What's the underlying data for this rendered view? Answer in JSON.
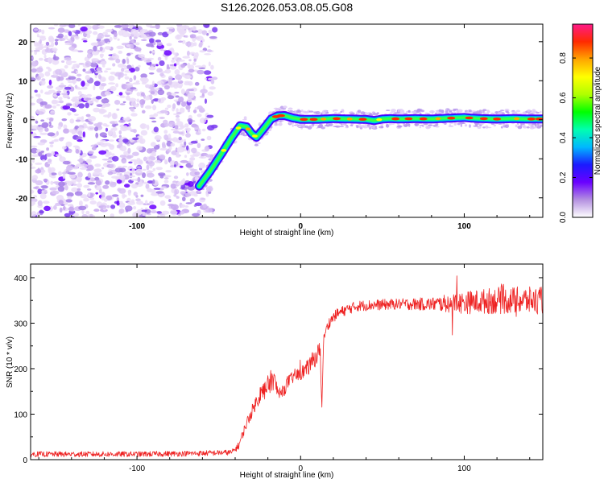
{
  "chart_data": [
    {
      "type": "heatmap",
      "title": "S126.2026.053.08.05.G08",
      "xlabel": "Height of straight line (km)",
      "ylabel": "Frequency (Hz)",
      "xlim": [
        -165,
        148
      ],
      "ylim": [
        -25,
        24.5
      ],
      "x_ticks": [
        -100,
        0,
        100
      ],
      "x_tick_labels": [
        "-100",
        "0",
        "100"
      ],
      "y_ticks": [
        -20,
        -10,
        0,
        10,
        20
      ],
      "y_tick_labels": [
        "-20",
        "-10",
        "0",
        "10",
        "20"
      ],
      "noise_region_x": [
        -165,
        -52
      ],
      "ridge": {
        "x": [
          -62,
          -55,
          -48,
          -42,
          -37,
          -33,
          -30,
          -27,
          -23,
          -18,
          -14,
          -10,
          -5,
          0,
          10,
          20,
          30,
          40,
          45,
          50,
          55,
          60,
          70,
          80,
          90,
          100,
          105,
          110,
          120,
          130,
          140,
          148
        ],
        "y": [
          -17,
          -13,
          -8.5,
          -4.5,
          -1.5,
          -1.8,
          -3.5,
          -4.5,
          -2.5,
          0.2,
          1,
          1.1,
          0.5,
          0.1,
          0.1,
          0.3,
          0.2,
          0.1,
          -0.2,
          0.2,
          0.3,
          0.2,
          0.3,
          0.2,
          0.4,
          0.6,
          0.4,
          0.3,
          0.2,
          0.3,
          0.2,
          0.2
        ]
      },
      "colorbar": {
        "label": "Normalized spectral amplitude",
        "range": [
          0,
          0.97
        ],
        "ticks": [
          0.0,
          0.2,
          0.4,
          0.6,
          0.8
        ],
        "tick_labels": [
          "0.0",
          "0.2",
          "0.4",
          "0.6",
          "0.8"
        ],
        "colors": [
          "#ffffff",
          "#b490e0",
          "#6a00ff",
          "#1b1bff",
          "#00b8ff",
          "#00ffb0",
          "#00ff00",
          "#b0ff00",
          "#ffff00",
          "#ffa500",
          "#ff2a00",
          "#ff1a8a"
        ]
      }
    },
    {
      "type": "line",
      "xlabel": "Height of straight line (km)",
      "ylabel": "SNR (10 * v/v)",
      "xlim": [
        -165,
        148
      ],
      "ylim": [
        0,
        430
      ],
      "x_ticks": [
        -100,
        0,
        100
      ],
      "x_tick_labels": [
        "-100",
        "0",
        "100"
      ],
      "y_ticks": [
        0,
        100,
        200,
        300,
        400
      ],
      "y_tick_labels": [
        "0",
        "100",
        "200",
        "300",
        "400"
      ],
      "series": [
        {
          "name": "SNR",
          "color": "#ee2222",
          "x": [
            -165,
            -100,
            -60,
            -42,
            -38,
            -33,
            -28,
            -24,
            -20,
            -17,
            -14,
            -12,
            -10,
            -8,
            -6,
            -4,
            -2,
            0,
            4,
            8,
            12,
            13,
            14,
            15,
            18,
            22,
            28,
            35,
            45,
            60,
            80,
            100,
            120,
            148
          ],
          "y": [
            12,
            12,
            14,
            16,
            30,
            80,
            120,
            150,
            160,
            180,
            150,
            140,
            155,
            170,
            175,
            185,
            185,
            190,
            200,
            220,
            240,
            115,
            260,
            280,
            305,
            320,
            330,
            338,
            340,
            342,
            342,
            345,
            350,
            350
          ],
          "noise": [
            6,
            6,
            6,
            6,
            8,
            12,
            15,
            22,
            25,
            25,
            18,
            15,
            15,
            15,
            15,
            15,
            15,
            15,
            18,
            20,
            22,
            5,
            10,
            12,
            12,
            12,
            12,
            12,
            12,
            12,
            15,
            25,
            30,
            30
          ]
        }
      ]
    }
  ]
}
